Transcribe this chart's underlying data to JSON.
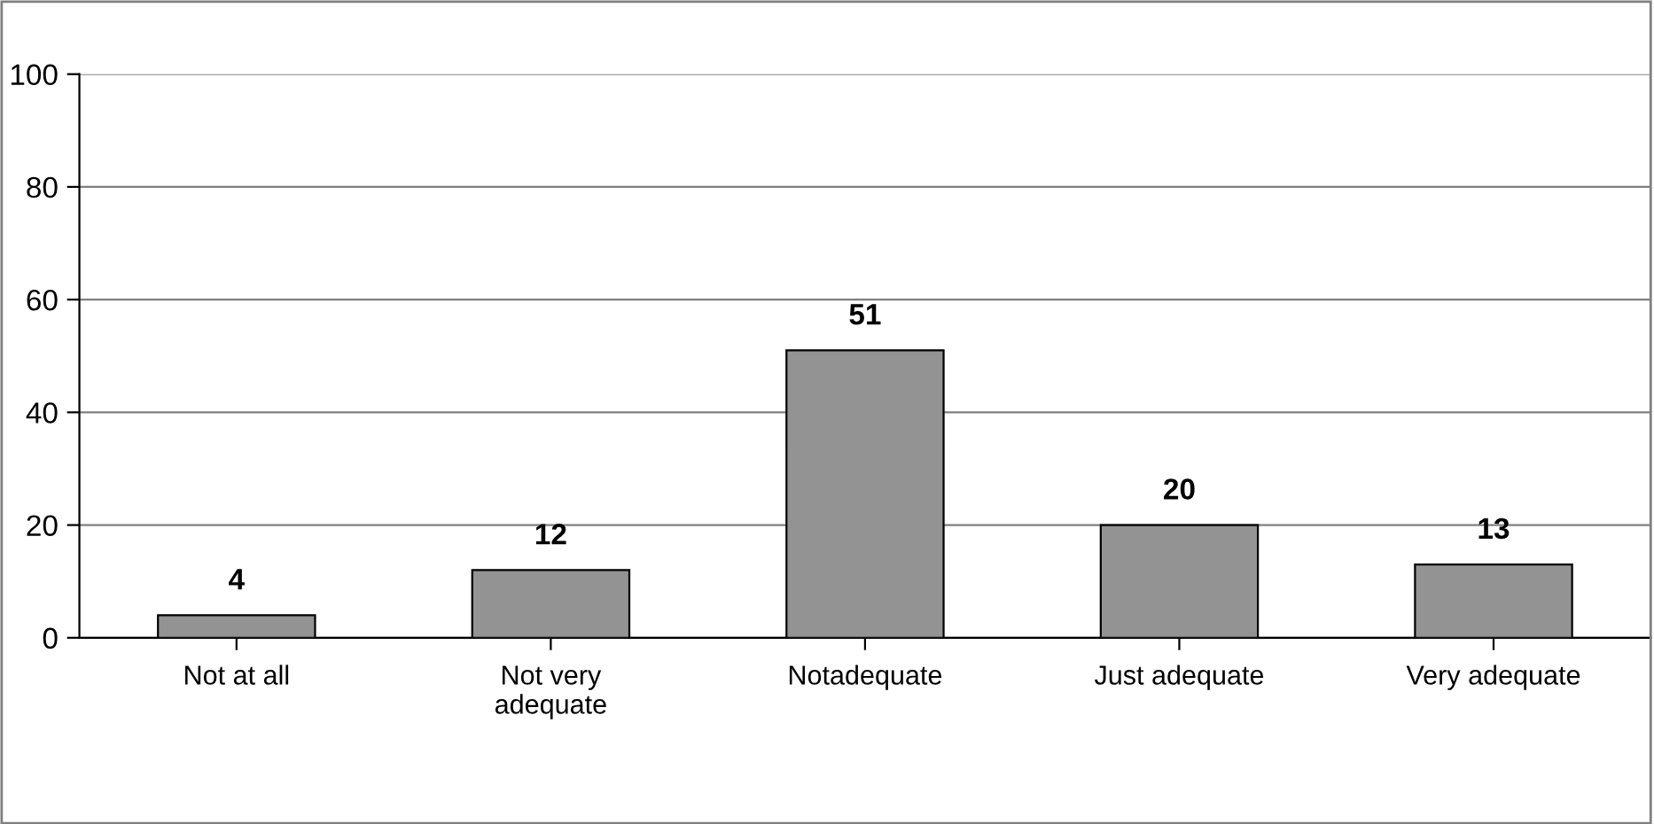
{
  "chart_data": {
    "type": "bar",
    "categories": [
      "Not at all",
      "Not very\nadequate",
      "Notadequate",
      "Just adequate",
      "Very adequate"
    ],
    "values": [
      4,
      12,
      51,
      20,
      13
    ],
    "color": "#939393",
    "ylim": [
      0,
      100
    ],
    "yticks": [
      0,
      20,
      40,
      60,
      80,
      100
    ],
    "grid": "y",
    "data_labels": true,
    "legend": false
  }
}
